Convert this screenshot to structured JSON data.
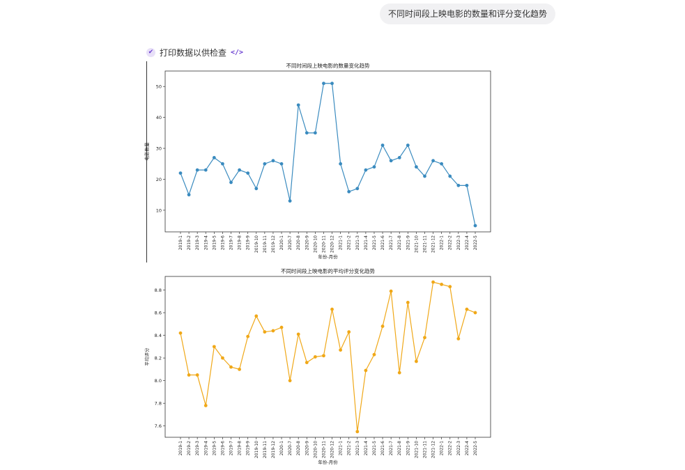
{
  "conversation": {
    "user_message": "不同时间段上映电影的数量和评分变化趋势",
    "tool_label": "打印数据以供检查",
    "tool_code_icon": "</>"
  },
  "chart_data": [
    {
      "type": "line",
      "title": "不同时间段上映电影的数量变化趋势",
      "xlabel": "年份-月份",
      "ylabel": "电影数量",
      "color": "#3a8bbf",
      "ylim": [
        3,
        55
      ],
      "yticks": [
        10,
        20,
        30,
        40,
        50
      ],
      "ytick_labels": [
        "10",
        "20",
        "30",
        "40",
        "50"
      ],
      "categories": [
        "2019-1",
        "2019-2",
        "2019-3",
        "2019-4",
        "2019-5",
        "2019-6",
        "2019-7",
        "2019-8",
        "2019-9",
        "2019-10",
        "2019-11",
        "2019-12",
        "2020-1",
        "2020-7",
        "2020-8",
        "2020-9",
        "2020-10",
        "2020-11",
        "2020-12",
        "2021-1",
        "2021-2",
        "2021-3",
        "2021-4",
        "2021-5",
        "2021-6",
        "2021-7",
        "2021-8",
        "2021-9",
        "2021-10",
        "2021-11",
        "2021-12",
        "2022-1",
        "2022-2",
        "2022-3",
        "2022-4",
        "2022-5"
      ],
      "values": [
        22,
        15,
        23,
        23,
        27,
        25,
        19,
        23,
        22,
        17,
        25,
        26,
        25,
        13,
        44,
        35,
        35,
        51,
        51,
        25,
        16,
        17,
        23,
        24,
        31,
        26,
        27,
        31,
        24,
        21,
        26,
        25,
        21,
        18,
        18,
        5
      ],
      "grid": false
    },
    {
      "type": "line",
      "title": "不同时间段上映电影的平均评分变化趋势",
      "xlabel": "年份-月份",
      "ylabel": "平均评分",
      "color": "#f0a818",
      "ylim": [
        7.5,
        8.92
      ],
      "yticks": [
        7.6,
        7.8,
        8.0,
        8.2,
        8.4,
        8.6,
        8.8
      ],
      "ytick_labels": [
        "7.6",
        "7.8",
        "8.0",
        "8.2",
        "8.4",
        "8.6",
        "8.8"
      ],
      "categories": [
        "2019-1",
        "2019-2",
        "2019-3",
        "2019-4",
        "2019-5",
        "2019-6",
        "2019-7",
        "2019-8",
        "2019-9",
        "2019-10",
        "2019-11",
        "2019-12",
        "2020-1",
        "2020-7",
        "2020-8",
        "2020-9",
        "2020-10",
        "2020-11",
        "2020-12",
        "2021-1",
        "2021-2",
        "2021-3",
        "2021-4",
        "2021-5",
        "2021-6",
        "2021-7",
        "2021-8",
        "2021-9",
        "2021-10",
        "2021-11",
        "2021-12",
        "2022-1",
        "2022-2",
        "2022-3",
        "2022-4",
        "2022-5"
      ],
      "values": [
        8.42,
        8.05,
        8.05,
        7.78,
        8.3,
        8.2,
        8.12,
        8.1,
        8.39,
        8.57,
        8.43,
        8.44,
        8.47,
        8.0,
        8.41,
        8.16,
        8.21,
        8.22,
        8.63,
        8.27,
        8.43,
        7.55,
        8.09,
        8.23,
        8.48,
        8.79,
        8.07,
        8.69,
        8.17,
        8.38,
        8.87,
        8.85,
        8.83,
        8.37,
        8.63,
        8.6
      ],
      "grid": false
    }
  ]
}
